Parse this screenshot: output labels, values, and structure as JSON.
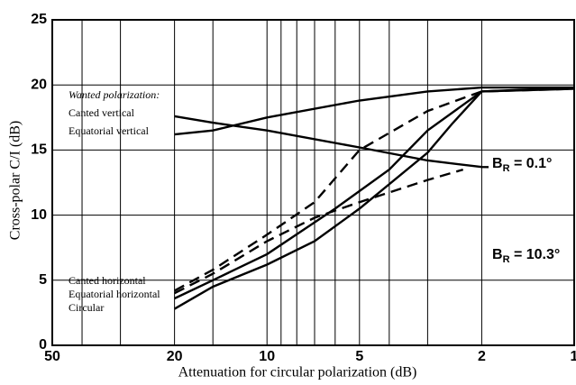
{
  "chart_data": {
    "type": "line",
    "x_label": "Attenuation for circular polarization (dB)",
    "y_label": "Cross-polar C/I (dB)",
    "legend_title": "Wanted polarization:",
    "xscale": "log",
    "xlim": [
      50,
      1
    ],
    "xticks": [
      50,
      20,
      10,
      5,
      2,
      1
    ],
    "xgrid": [
      40,
      30,
      15,
      9,
      8,
      7,
      6,
      4,
      3
    ],
    "ylim": [
      0,
      25
    ],
    "yticks": [
      0,
      5,
      10,
      15,
      20,
      25
    ],
    "grid": true,
    "series": [
      {
        "name": "Canted vertical",
        "color": "#000000",
        "dash": false,
        "x": [
          20,
          15,
          10,
          5,
          3,
          2,
          1
        ],
        "values": [
          17.6,
          17.1,
          16.5,
          15.2,
          14.2,
          13.7,
          13.6
        ]
      },
      {
        "name": "Equatorial vertical",
        "color": "#000000",
        "dash": false,
        "x": [
          20,
          15,
          10,
          5,
          3,
          2,
          1
        ],
        "values": [
          16.2,
          16.5,
          17.5,
          18.8,
          19.5,
          19.8,
          19.8
        ]
      },
      {
        "name": "Canted horizontal",
        "color": "#000000",
        "dash": true,
        "x": [
          20,
          15,
          10,
          7,
          5,
          3,
          2,
          1
        ],
        "values": [
          4.2,
          5.8,
          8.5,
          11,
          15,
          18,
          19.5,
          19.7
        ]
      },
      {
        "color": "#000000",
        "dash": true,
        "x": [
          20,
          15,
          10,
          7,
          5,
          3,
          2.3
        ],
        "values": [
          4.0,
          5.5,
          8.0,
          9.8,
          11,
          12.7,
          13.5
        ]
      },
      {
        "name": "Equatorial horizontal",
        "color": "#000000",
        "dash": false,
        "x": [
          20,
          15,
          10,
          6,
          4,
          3,
          2,
          1
        ],
        "values": [
          3.6,
          5.0,
          7.0,
          10.5,
          13.5,
          16.5,
          19.5,
          19.8
        ]
      },
      {
        "name": "Circular",
        "color": "#000000",
        "dash": false,
        "x": [
          20,
          15,
          10,
          7,
          5,
          3,
          2.5,
          2,
          1
        ],
        "values": [
          2.8,
          4.5,
          6.2,
          8.0,
          10.5,
          14.8,
          17,
          19.5,
          19.7
        ]
      }
    ],
    "annotations": [
      {
        "symbol": "B",
        "subscript": "R",
        "text": " = 0.1°"
      },
      {
        "symbol": "B",
        "subscript": "R",
        "text": " = 10.3°"
      }
    ]
  }
}
